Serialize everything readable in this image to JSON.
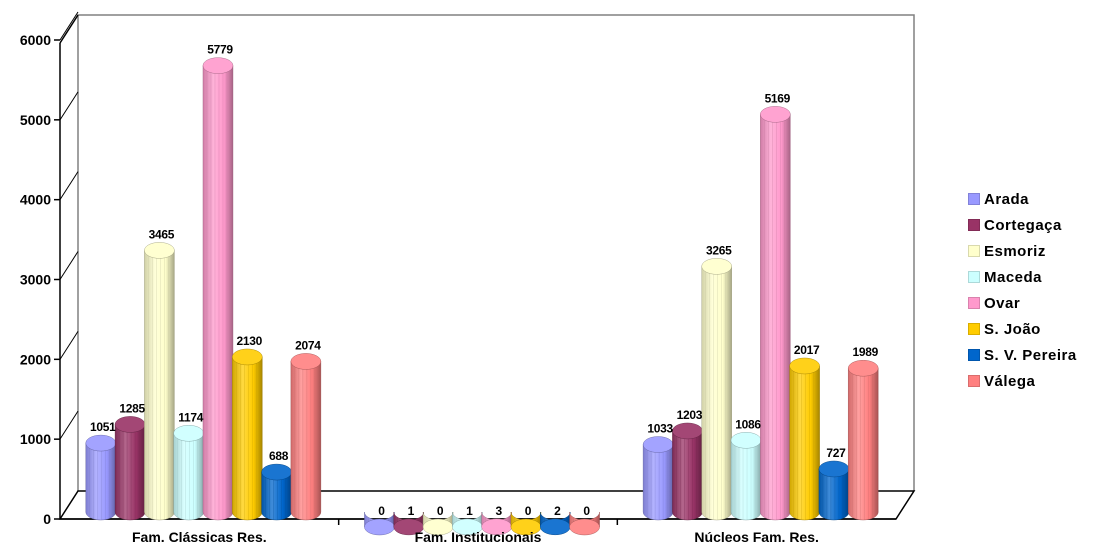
{
  "chart_data": {
    "type": "bar",
    "categories": [
      "Fam. Clássicas Res.",
      "Fam. Institucionais",
      "Núcleos Fam. Res."
    ],
    "series": [
      {
        "name": "Arada",
        "color": "#9999ff",
        "values": [
          1051,
          0,
          1033
        ]
      },
      {
        "name": "Cortegaça",
        "color": "#993366",
        "values": [
          1285,
          1,
          1203
        ]
      },
      {
        "name": "Esmoriz",
        "color": "#ffffcc",
        "values": [
          3465,
          0,
          3265
        ]
      },
      {
        "name": "Maceda",
        "color": "#ccffff",
        "values": [
          1174,
          1,
          1086
        ]
      },
      {
        "name": "Ovar",
        "color": "#ff99cc",
        "values": [
          5779,
          3,
          5169
        ]
      },
      {
        "name": "S. João",
        "color": "#ffcc00",
        "values": [
          2130,
          0,
          2017
        ]
      },
      {
        "name": "S. V. Pereira",
        "color": "#0066cc",
        "values": [
          688,
          2,
          727
        ]
      },
      {
        "name": "Válega",
        "color": "#ff8080",
        "values": [
          2074,
          0,
          1989
        ]
      }
    ],
    "y_ticks": [
      "0",
      "1000",
      "2000",
      "3000",
      "4000",
      "5000",
      "6000"
    ],
    "ylim": [
      0,
      6000
    ],
    "data_labels": [
      [
        "1051",
        "1285",
        "3465",
        "1174",
        "5779",
        "2130",
        "688",
        "2074"
      ],
      [
        "0",
        "1",
        "0",
        "1",
        "3",
        "0",
        "2",
        "0"
      ],
      [
        "1033",
        "1203",
        "3265",
        "1086",
        "5169",
        "2017",
        "727",
        "1989"
      ]
    ],
    "legend_position": "right",
    "grid": false
  }
}
